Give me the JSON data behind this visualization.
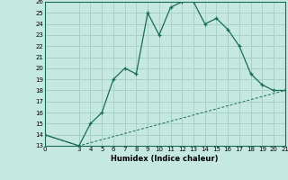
{
  "xlabel": "Humidex (Indice chaleur)",
  "bg_color": "#c5e8e0",
  "grid_color": "#a8d0c8",
  "line_color": "#1a6b5a",
  "xlim": [
    0,
    21
  ],
  "ylim": [
    13,
    26
  ],
  "xticks": [
    0,
    3,
    4,
    5,
    6,
    7,
    8,
    9,
    10,
    11,
    12,
    13,
    14,
    15,
    16,
    17,
    18,
    19,
    20,
    21
  ],
  "yticks": [
    13,
    14,
    15,
    16,
    17,
    18,
    19,
    20,
    21,
    22,
    23,
    24,
    25,
    26
  ],
  "curve1_x": [
    0,
    3,
    4,
    5,
    6,
    7,
    8,
    9,
    10,
    11,
    12,
    13,
    14,
    15,
    16,
    17,
    18,
    19,
    20,
    21
  ],
  "curve1_y": [
    14,
    13,
    15,
    16,
    19,
    20,
    19.5,
    25,
    23,
    25.5,
    26,
    26,
    24,
    24.5,
    23.5,
    22,
    19.5,
    18.5,
    18,
    18
  ],
  "curve2_x": [
    0,
    3,
    21
  ],
  "curve2_y": [
    14,
    13,
    18
  ]
}
